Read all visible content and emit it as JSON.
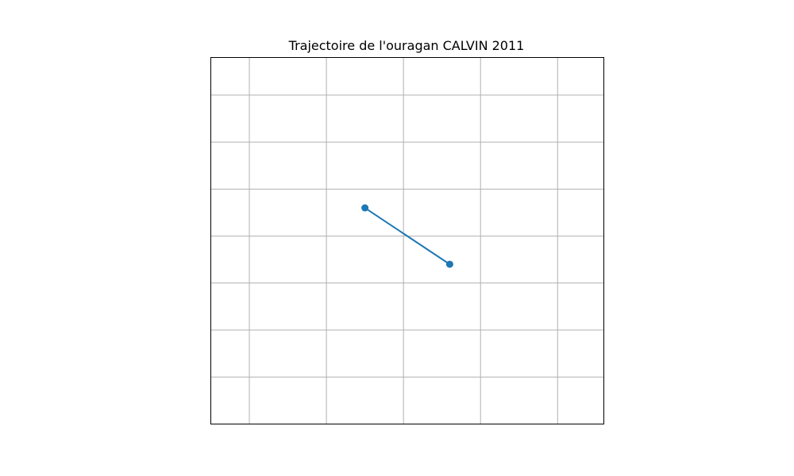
{
  "chart_data": {
    "type": "line",
    "title": "Trajectoire de l'ouragan CALVIN 2011",
    "xlabel": "",
    "ylabel": "",
    "x_axis": "longitude",
    "y_axis": "latitude",
    "xlim": [
      -108.5,
      -103.4
    ],
    "ylim": [
      15.1,
      19.0
    ],
    "x_gridlines": [
      -108.0,
      -107.0,
      -106.0,
      -105.0,
      -104.0
    ],
    "y_gridlines": [
      15.6,
      16.1,
      16.6,
      17.1,
      17.6,
      18.1,
      18.6
    ],
    "grid": true,
    "legend": "none",
    "series": [
      {
        "marker": "circle",
        "color": "#1f77b4",
        "x": [
          -106.5,
          -105.4
        ],
        "y": [
          17.4,
          16.8
        ]
      }
    ]
  }
}
